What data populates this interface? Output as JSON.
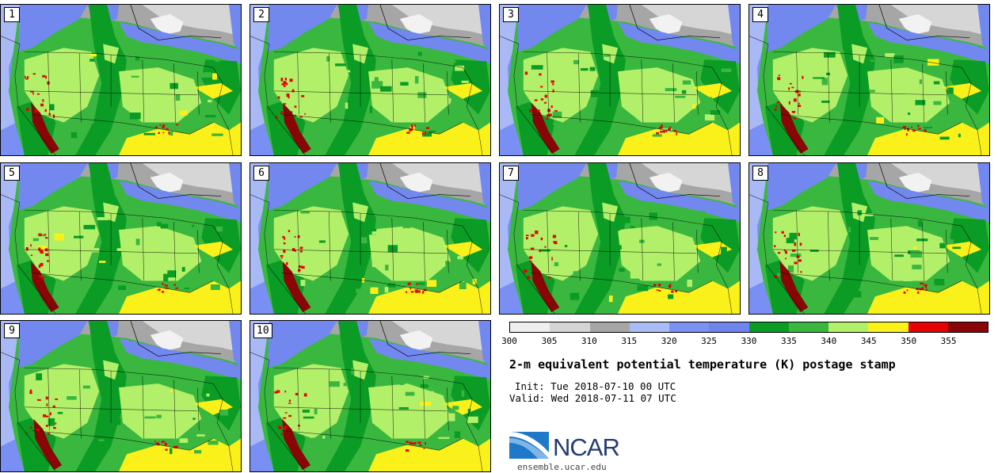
{
  "panel": {
    "title": "2-m equivalent potential temperature (K) postage stamp",
    "init": "Init: Tue 2018-07-10 00 UTC",
    "valid": "Valid: Wed 2018-07-11 07 UTC",
    "url": "ensemble.ucar.edu",
    "logo_text": "NCAR"
  },
  "members": [
    "1",
    "2",
    "3",
    "4",
    "5",
    "6",
    "7",
    "8",
    "9",
    "10"
  ],
  "colorbar": {
    "ticks": [
      "300",
      "305",
      "310",
      "315",
      "320",
      "325",
      "330",
      "335",
      "340",
      "345",
      "350",
      "355"
    ],
    "colors": [
      "#eeeeee",
      "#d4d4d4",
      "#a6a6a6",
      "#aabcf5",
      "#7a92f2",
      "#6f85ee",
      "#0a9c24",
      "#3ab73f",
      "#b2f06a",
      "#fbf11a",
      "#e40202",
      "#8a0606"
    ]
  },
  "map_colors": {
    "ocean": "#7a8ff3",
    "ocean_light": "#a9b9f6",
    "canada_gray": "#a6a6a6",
    "canada_light": "#d6d6d6",
    "lakes_white": "#f2f2f2",
    "blue": "#7288ef",
    "green_dark": "#0a9c24",
    "green": "#3ab73f",
    "green_light": "#b2f06a",
    "yellow": "#fbf11a",
    "red": "#e40202",
    "red_dark": "#8a0606"
  }
}
